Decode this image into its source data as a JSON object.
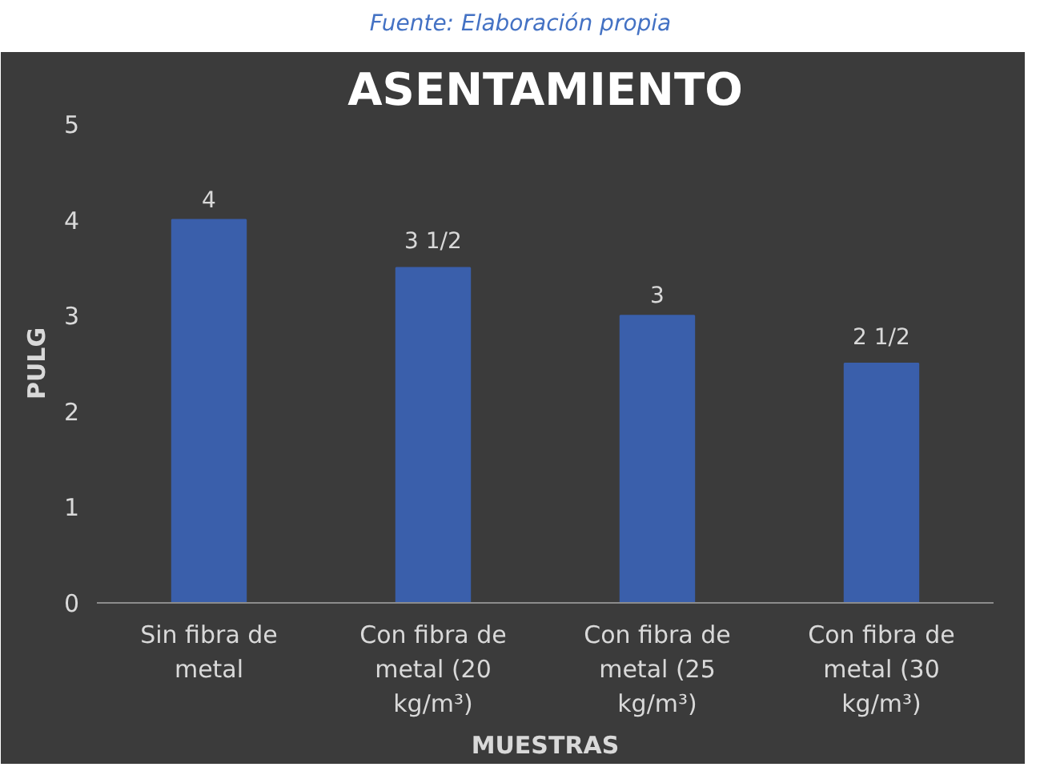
{
  "chart_data": {
    "type": "bar",
    "title": "ASENTAMIENTO",
    "xlabel": "MUESTRAS",
    "ylabel": "PULG",
    "annotations": [
      "Fuente: Elaboración propia"
    ],
    "categories": [
      "Sin fibra de metal",
      "Con fibra de metal (20 kg/m³)",
      "Con fibra de metal (25 kg/m³)",
      "Con fibra de metal (30 kg/m³)"
    ],
    "values": [
      4,
      3.5,
      3,
      2.5
    ],
    "value_labels": [
      "4",
      "3 1/2",
      "3",
      "2 1/2"
    ],
    "color": "#3a5fab",
    "ylim": [
      0,
      5
    ],
    "yticks": [
      0,
      1,
      2,
      3,
      4,
      5
    ],
    "grid": false
  }
}
